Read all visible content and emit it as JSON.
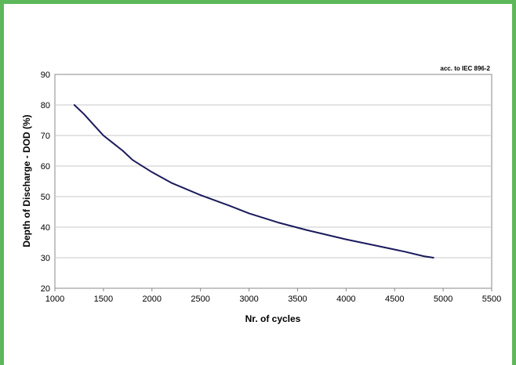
{
  "chart_data": {
    "type": "line",
    "title": "",
    "annotation": "acc. to IEC 896-2",
    "xlabel": "Nr. of cycles",
    "ylabel": "Depth of Discharge - DOD (%)",
    "xlim": [
      1000,
      5500
    ],
    "ylim": [
      20,
      90
    ],
    "xticks": [
      1000,
      1500,
      2000,
      2500,
      3000,
      3500,
      4000,
      4500,
      5000,
      5500
    ],
    "yticks": [
      20,
      30,
      40,
      50,
      60,
      70,
      80,
      90
    ],
    "grid": "horizontal",
    "legend": "none",
    "line_color": "#1a1a5c",
    "series": [
      {
        "x": [
          1200,
          1300,
          1400,
          1500,
          1600,
          1700,
          1800,
          2000,
          2200,
          2500,
          2800,
          3000,
          3300,
          3600,
          4000,
          4300,
          4600,
          4800,
          4900
        ],
        "y": [
          80,
          77,
          73.5,
          70,
          67.5,
          65,
          62,
          58,
          54.5,
          50.5,
          47,
          44.5,
          41.5,
          39,
          36,
          34,
          32,
          30.5,
          30
        ]
      }
    ]
  }
}
